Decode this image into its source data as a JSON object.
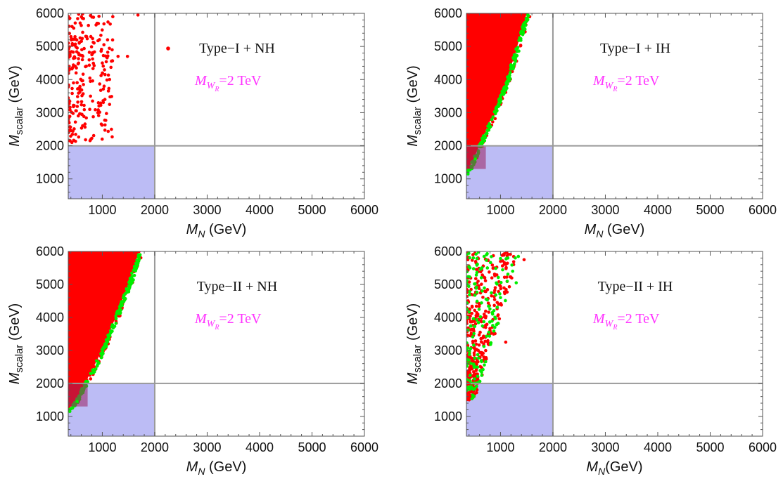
{
  "colors": {
    "scan": "#ff0000",
    "constraint_pass": "#00ee00",
    "excluded_region": "#bcbcf5",
    "constraint_line": "#999999",
    "annotation_mwr": "#ff33ff"
  },
  "chart_data": [
    {
      "type": "scatter",
      "label": "Type−I + NH",
      "label_has_marker": true,
      "mwr_label": {
        "symbol": "M",
        "sub": "W",
        "subsub": "R",
        "value": "=2 TeV"
      },
      "xlabel": {
        "symbol": "M",
        "sub": "N",
        "unit": " (GeV)"
      },
      "ylabel": {
        "symbol": "M",
        "sub": "scalar",
        "unit": " (GeV)"
      },
      "xlim": [
        350,
        6000
      ],
      "ylim": [
        400,
        6000
      ],
      "xticks": [
        "1000",
        "2000",
        "3000",
        "4000",
        "5000",
        "6000"
      ],
      "yticks": [
        "1000",
        "2000",
        "3000",
        "4000",
        "5000",
        "6000"
      ],
      "reference_lines": {
        "x": 2000,
        "y": 2000
      },
      "excluded_region": {
        "x": [
          350,
          2000
        ],
        "y": [
          400,
          2000
        ]
      },
      "series": [
        {
          "color": "#ff0000",
          "region": "sparse_points",
          "values": [
            [
              380,
              2150
            ],
            [
              420,
              2100
            ],
            [
              450,
              3900
            ],
            [
              500,
              4200
            ],
            [
              560,
              5100
            ],
            [
              620,
              4600
            ],
            [
              700,
              5300
            ],
            [
              760,
              3100
            ],
            [
              820,
              4800
            ],
            [
              900,
              5700
            ],
            [
              1000,
              4500
            ],
            [
              1050,
              3400
            ],
            [
              1100,
              5200
            ],
            [
              1200,
              5900
            ],
            [
              1300,
              4700
            ],
            [
              1480,
              4700
            ],
            [
              1680,
              5950
            ]
          ]
        }
      ]
    },
    {
      "type": "scatter",
      "label": "Type−I + IH",
      "label_has_marker": false,
      "mwr_label": {
        "symbol": "M",
        "sub": "W",
        "subsub": "R",
        "value": "=2 TeV"
      },
      "xlabel": {
        "symbol": "M",
        "sub": "N",
        "unit": " (GeV)"
      },
      "ylabel": {
        "symbol": "M",
        "sub": "scalar",
        "unit": " (GeV)"
      },
      "xlim": [
        350,
        6000
      ],
      "ylim": [
        400,
        6000
      ],
      "xticks": [
        "1000",
        "2000",
        "3000",
        "4000",
        "5000",
        "6000"
      ],
      "yticks": [
        "1000",
        "2000",
        "3000",
        "4000",
        "5000",
        "6000"
      ],
      "reference_lines": {
        "x": 2000,
        "y": 2000
      },
      "excluded_region": {
        "x": [
          350,
          2000
        ],
        "y": [
          400,
          2000
        ]
      },
      "series": [
        {
          "color": "#ff0000",
          "region": "filled_band",
          "values": [
            [
              350,
              1200
            ],
            [
              500,
              1650
            ],
            [
              700,
              2400
            ],
            [
              900,
              3100
            ],
            [
              1100,
              3900
            ],
            [
              1300,
              4900
            ],
            [
              1500,
              6000
            ]
          ]
        },
        {
          "color": "#00ee00",
          "region": "band_edge",
          "values": [
            [
              380,
              1150
            ],
            [
              520,
              1600
            ],
            [
              720,
              2350
            ],
            [
              920,
              3050
            ],
            [
              1120,
              3850
            ],
            [
              1320,
              4850
            ],
            [
              1520,
              5950
            ]
          ]
        }
      ]
    },
    {
      "type": "scatter",
      "label": "Type−II + NH",
      "label_has_marker": false,
      "mwr_label": {
        "symbol": "M",
        "sub": "W",
        "subsub": "R",
        "value": "=2 TeV"
      },
      "xlabel": {
        "symbol": "M",
        "sub": "N",
        "unit": " (GeV)"
      },
      "ylabel": {
        "symbol": "M",
        "sub": "scalar",
        "unit": " (GeV)"
      },
      "xlim": [
        350,
        6000
      ],
      "ylim": [
        400,
        6000
      ],
      "xticks": [
        "1000",
        "2000",
        "3000",
        "4000",
        "5000",
        "6000"
      ],
      "yticks": [
        "1000",
        "2000",
        "3000",
        "4000",
        "5000",
        "6000"
      ],
      "reference_lines": {
        "x": 2000,
        "y": 2000
      },
      "excluded_region": {
        "x": [
          350,
          2000
        ],
        "y": [
          400,
          2000
        ]
      },
      "series": [
        {
          "color": "#ff0000",
          "region": "filled_band",
          "values": [
            [
              350,
              1200
            ],
            [
              500,
              1500
            ],
            [
              700,
              2100
            ],
            [
              900,
              2700
            ],
            [
              1100,
              3400
            ],
            [
              1300,
              4200
            ],
            [
              1500,
              5000
            ],
            [
              1700,
              6000
            ]
          ]
        },
        {
          "color": "#00ee00",
          "region": "band_edge",
          "values": [
            [
              380,
              1150
            ],
            [
              520,
              1450
            ],
            [
              720,
              2050
            ],
            [
              920,
              2650
            ],
            [
              1120,
              3350
            ],
            [
              1320,
              4150
            ],
            [
              1520,
              4950
            ],
            [
              1720,
              5900
            ]
          ]
        }
      ]
    },
    {
      "type": "scatter",
      "label": "Type−II + IH",
      "label_has_marker": false,
      "mwr_label": {
        "symbol": "M",
        "sub": "W",
        "subsub": "R",
        "value": "=2 TeV"
      },
      "xlabel": {
        "symbol": "M",
        "sub": "N",
        "unit": "(GeV)"
      },
      "ylabel": {
        "symbol": "M",
        "sub": "scalar",
        "unit": " (GeV)"
      },
      "xlim": [
        350,
        6000
      ],
      "ylim": [
        400,
        6000
      ],
      "xticks": [
        "1000",
        "2000",
        "3000",
        "4000",
        "5000",
        "6000"
      ],
      "yticks": [
        "1000",
        "2000",
        "3000",
        "4000",
        "5000",
        "6000"
      ],
      "reference_lines": {
        "x": 2000,
        "y": 2000
      },
      "excluded_region": {
        "x": [
          350,
          2000
        ],
        "y": [
          400,
          2000
        ]
      },
      "series": [
        {
          "color": "#ff0000",
          "region": "sparse_points",
          "values": [
            [
              380,
              1600
            ],
            [
              420,
              2300
            ],
            [
              500,
              3100
            ],
            [
              600,
              4400
            ],
            [
              700,
              5200
            ],
            [
              800,
              3600
            ],
            [
              900,
              4900
            ],
            [
              1000,
              5700
            ],
            [
              1100,
              3250
            ],
            [
              1250,
              5600
            ],
            [
              1450,
              5750
            ]
          ]
        },
        {
          "color": "#00ee00",
          "region": "sparse_points",
          "values": [
            [
              420,
              1900
            ],
            [
              520,
              2500
            ],
            [
              650,
              4800
            ],
            [
              750,
              5500
            ],
            [
              850,
              4100
            ],
            [
              1000,
              4600
            ],
            [
              1300,
              5050
            ]
          ]
        }
      ]
    }
  ]
}
